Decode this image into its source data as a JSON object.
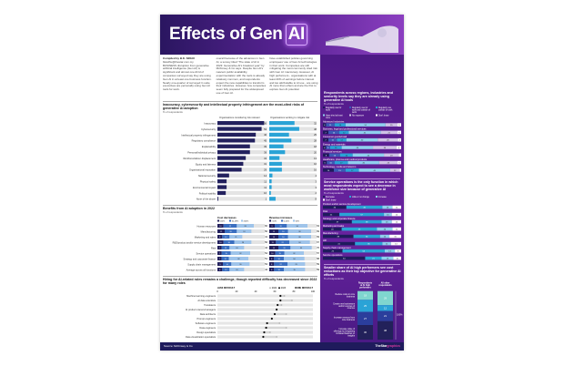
{
  "title": {
    "main": "Effects of Gen",
    "chip": "AI"
  },
  "intro": {
    "byline": "Compiled by B.K. SIDHU",
    "email": "bksidhu@thestar.com.my",
    "col1": "BUSINESS disruption from generative artificial intelligence (Gen AI) is significant and almost one-third of companies surveyed say they are using Gen AI in at least one business function. Nearly one-quarter of surveyed C-suite executives are personally using Gen AI tools for work.",
    "col2": "overall because of the advances in Gen AI, a survey titled \"The state of AI in 2023: Generative AI's breakout year\" by McKinsey & Co says. Despite Gen AI's nascent public availability, experimentation with the tools is already relatively common, and respondents expect the new capabilities to transform their industries. However, few companies seem fully prepared for the widespread use of Gen AI.",
    "col3": "have established policies governing employees' use of Gen AI technologies in their work. Companies are still mitigating the most commonly cited risk with Gen AI: inaccuracy. However, AI high performers - organisations with at least 20% of earnings before interest and tax attributable to AI use - are using AI more than others and are the first to explore Gen AI potential."
  },
  "risks": {
    "heading": "Inaccuracy, cybersecurity and intellectual property infringement are the most-cited risks of generative AI adoption",
    "unit": "% of respondents",
    "legend": [
      "Organisations considering risk relevant",
      "Organisations working to mitigate risk"
    ],
    "colors": [
      "#23215e",
      "#2aa3d6"
    ],
    "rows": [
      {
        "label": "Inaccuracy",
        "a": 56,
        "b": 32
      },
      {
        "label": "Cybersecurity",
        "a": 53,
        "b": 38
      },
      {
        "label": "Intellectual property infringement",
        "a": 46,
        "b": 25
      },
      {
        "label": "Regulatory compliance",
        "a": 45,
        "b": 28
      },
      {
        "label": "Explainability",
        "a": 39,
        "b": 18
      },
      {
        "label": "Personal/individual privacy",
        "a": 39,
        "b": 20
      },
      {
        "label": "Workforce/labour displacement",
        "a": 34,
        "b": 13
      },
      {
        "label": "Equity and fairness",
        "a": 31,
        "b": 16
      },
      {
        "label": "Organisational reputation",
        "a": 29,
        "b": 16
      },
      {
        "label": "National security",
        "a": 14,
        "b": 4
      },
      {
        "label": "Physical safety",
        "a": 11,
        "b": 3
      },
      {
        "label": "Environmental impact",
        "a": 11,
        "b": 3
      },
      {
        "label": "Political stability",
        "a": 10,
        "b": 2
      },
      {
        "label": "None of the above",
        "a": 1,
        "b": 8
      }
    ]
  },
  "benefits": {
    "heading": "Benefits from AI adoption in 2022",
    "unit": "% of respondents",
    "cost_title": "Cost decreases",
    "cost_legend": [
      "≤10%",
      "10-19%",
      "≥20%"
    ],
    "rev_title": "Revenue increases",
    "rev_legend": [
      ">10%",
      "6-10%",
      "≤5%"
    ],
    "rows": [
      {
        "label": "Human resources",
        "cost": [
          10,
          22,
          28
        ],
        "cost_total": 60,
        "rev": [
          9,
          20,
          34
        ],
        "rev_total": 63
      },
      {
        "label": "Manufacturing",
        "cost": [
          12,
          20,
          24
        ],
        "cost_total": 56,
        "rev": [
          15,
          16,
          38
        ],
        "rev_total": 69
      },
      {
        "label": "Marketing and sales",
        "cost": [
          8,
          12,
          21
        ],
        "cost_total": 41,
        "rev": [
          15,
          16,
          38
        ],
        "rev_total": 69
      },
      {
        "label": "R&D/product and/or service development",
        "cost": [
          10,
          18,
          28
        ],
        "cost_total": 56,
        "rev": [
          11,
          22,
          34
        ],
        "rev_total": 67
      },
      {
        "label": "Risk",
        "cost": [
          7,
          13,
          24
        ],
        "cost_total": 44,
        "rev": [
          15,
          20,
          35
        ],
        "rev_total": 70
      },
      {
        "label": "Service operations",
        "cost": [
          7,
          15,
          32
        ],
        "cost_total": 54,
        "rev": [
          10,
          15,
          32
        ],
        "rev_total": 57
      },
      {
        "label": "Strategy and corporate finance",
        "cost": [
          7,
          12,
          32
        ],
        "cost_total": 51,
        "rev": [
          8,
          16,
          34
        ],
        "rev_total": 58
      },
      {
        "label": "Supply chain management",
        "cost": [
          9,
          14,
          30
        ],
        "cost_total": 53,
        "rev": [
          8,
          22,
          29
        ],
        "rev_total": 59
      },
      {
        "label": "Average across all functions",
        "cost": [
          8,
          12,
          24
        ],
        "cost_total": 44,
        "rev": [
          8,
          16,
          35
        ],
        "rev_total": 59
      }
    ]
  },
  "hiring": {
    "heading": "Hiring for AI-related roles remains a challenge, though reported difficulty has decreased since 2022 for many roles",
    "less": "LESS DIFFICULT",
    "more": "MORE DIFFICULT",
    "legend": [
      "2022",
      "2023"
    ],
    "ticks": [
      "0",
      "20",
      "40",
      "60",
      "80",
      "100"
    ],
    "rows": [
      {
        "label": "Machine learning engineers",
        "y2022": 70,
        "y2023": 66
      },
      {
        "label": "AI data scientists",
        "y2022": 78,
        "y2023": 66
      },
      {
        "label": "Translators",
        "y2022": 67,
        "y2023": 63
      },
      {
        "label": "AI product owners/managers",
        "y2022": 62,
        "y2023": 62
      },
      {
        "label": "Data architects",
        "y2022": 72,
        "y2023": 60
      },
      {
        "label": "Prompt engineers",
        "y2022": 57,
        "y2023": 57
      },
      {
        "label": "Software engineers",
        "y2022": 65,
        "y2023": 52
      },
      {
        "label": "Data engineers",
        "y2022": 72,
        "y2023": 51
      },
      {
        "label": "Design specialists",
        "y2022": 55,
        "y2023": 49
      },
      {
        "label": "Data visualization specialists",
        "y2022": 62,
        "y2023": 48
      }
    ]
  },
  "usage": {
    "heading": "Respondents across regions, industries and seniority levels say they are already using generative AI tools",
    "unit": "% of respondents",
    "legend": [
      "Regularly use for work",
      "Regularly use for work and outside of work",
      "Regularly use outside of work",
      "Have tried at least once",
      "No exposure",
      "Don't know"
    ],
    "colors": [
      "#1e1b5c",
      "#3b5bb5",
      "#2aa3d6",
      "#8fd0ee",
      "#cfc3e6",
      "#ffffff"
    ],
    "rows": [
      {
        "label": "Advanced industries",
        "values": [
          4,
          11,
          14,
          51,
          15,
          5
        ]
      },
      {
        "label": "Business, legal and professional services",
        "values": [
          7,
          14,
          12,
          41,
          21,
          5
        ]
      },
      {
        "label": "Consumer goods/retail",
        "values": [
          7,
          11,
          12,
          40,
          26,
          4
        ]
      },
      {
        "label": "Energy and materials",
        "values": [
          4,
          5,
          15,
          40,
          30,
          6
        ]
      },
      {
        "label": "Financial services",
        "values": [
          8,
          14,
          16,
          40,
          19,
          3
        ]
      },
      {
        "label": "Healthcare, pharma and medical products",
        "values": [
          5,
          10,
          17,
          40,
          23,
          5
        ]
      },
      {
        "label": "Technology, media and telecom",
        "values": [
          14,
          15,
          17,
          40,
          12,
          2
        ]
      }
    ]
  },
  "workforce": {
    "heading": "Service operations is the only function in which most respondents expect to see a decrease in workforce size because of generative AI",
    "unit": "% of respondents",
    "legend": [
      "Decrease",
      "Little or no change",
      "Increase",
      "Don't know"
    ],
    "colors": [
      "#1e1b5c",
      "#2aa3d6",
      "#8fd0ee",
      "#ffffff"
    ],
    "rows": [
      {
        "label": "Product and/or service development",
        "values": [
          30,
          46,
          13,
          11
        ]
      },
      {
        "label": "Risk",
        "values": [
          21,
          57,
          10,
          12
        ]
      },
      {
        "label": "Strategy and corporate finance",
        "values": [
          37,
          38,
          13,
          12
        ]
      },
      {
        "label": "Marketing and sales",
        "values": [
          24,
          45,
          20,
          11
        ]
      },
      {
        "label": "Manufacturing",
        "values": [
          39,
          34,
          12,
          15
        ]
      },
      {
        "label": "HR",
        "values": [
          41,
          35,
          11,
          13
        ]
      },
      {
        "label": "Supply chain management",
        "values": [
          25,
          54,
          13,
          8
        ]
      },
      {
        "label": "Service operations",
        "values": [
          54,
          21,
          15,
          10
        ]
      }
    ]
  },
  "objectives": {
    "heading": "Smaller share of AI high performers see cost reductions as their top objective for generative AI efforts",
    "unit": "% of respondents",
    "columns": [
      "Respondents at AI high performers",
      "All other respondents"
    ],
    "labels": [
      "Reduce costs in core business",
      "Create new businesses and/or sources of revenue",
      "Increase revenue from core business",
      "Increase value of offerings by integrating AI-based features or insights"
    ],
    "colors": [
      "#7fd6cf",
      "#2aa3d6",
      "#2b3e9c",
      "#22215a"
    ],
    "high": [
      18,
      25,
      27,
      30
    ],
    "other": [
      29,
      12,
      21,
      38
    ],
    "total": "100%"
  },
  "footer": {
    "source": "Source: McKinsey & Co",
    "logo_a": "TheStar",
    "logo_b": "graphics"
  }
}
